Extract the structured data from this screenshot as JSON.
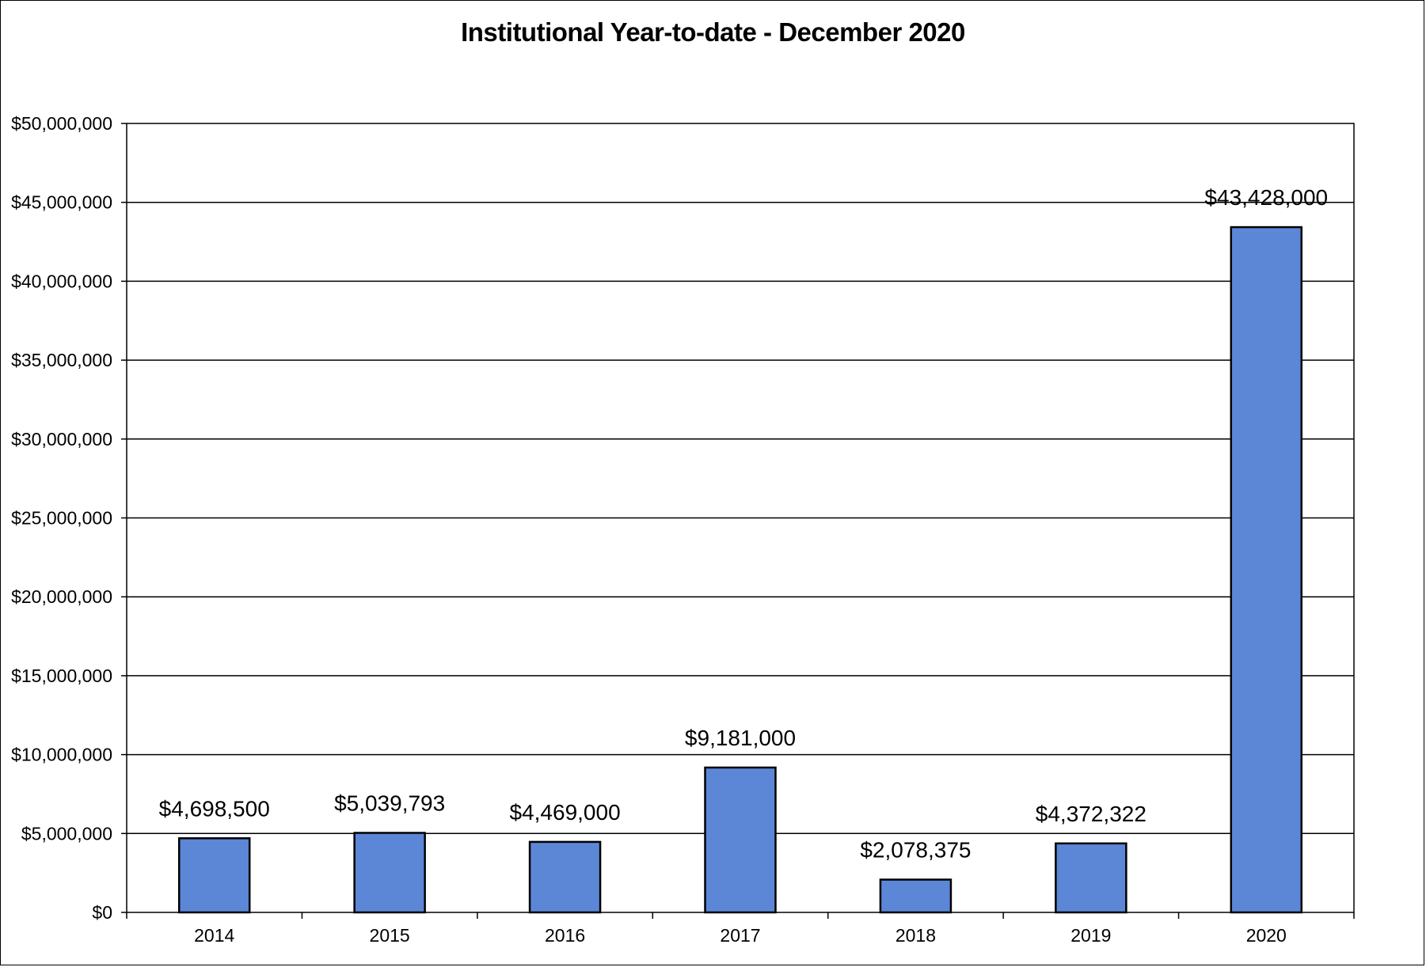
{
  "chart_data": {
    "type": "bar",
    "title": "Institutional Year-to-date - December 2020",
    "xlabel": "",
    "ylabel": "",
    "categories": [
      "2014",
      "2015",
      "2016",
      "2017",
      "2018",
      "2019",
      "2020"
    ],
    "values": [
      4698500,
      5039793,
      4469000,
      9181000,
      2078375,
      4372322,
      43428000
    ],
    "data_labels": [
      "$4,698,500",
      "$5,039,793",
      "$4,469,000",
      "$9,181,000",
      "$2,078,375",
      "$4,372,322",
      "$43,428,000"
    ],
    "ylim": [
      0,
      50000000
    ],
    "yticks": [
      0,
      5000000,
      10000000,
      15000000,
      20000000,
      25000000,
      30000000,
      35000000,
      40000000,
      45000000,
      50000000
    ],
    "ytick_labels": [
      "$0",
      "$5,000,000",
      "$10,000,000",
      "$15,000,000",
      "$20,000,000",
      "$25,000,000",
      "$30,000,000",
      "$35,000,000",
      "$40,000,000",
      "$45,000,000",
      "$50,000,000"
    ],
    "grid": true,
    "legend": "none",
    "colors": {
      "bar": "#5b87d6",
      "bar_border": "#000000",
      "grid": "#000000"
    }
  }
}
